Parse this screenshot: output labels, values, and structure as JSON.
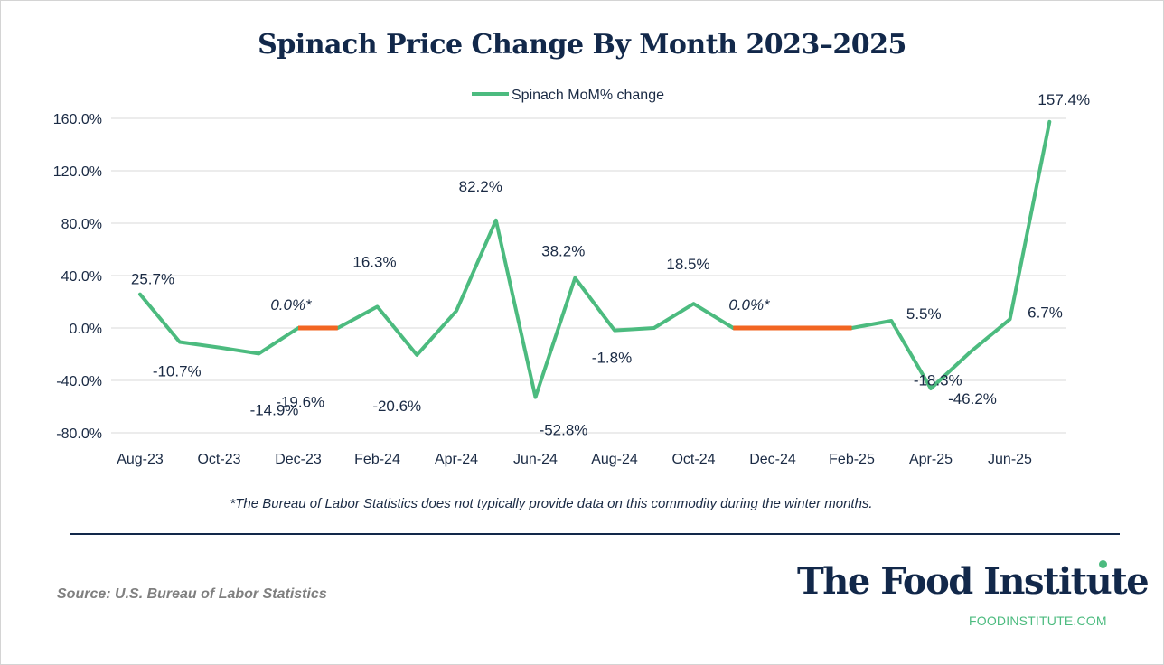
{
  "chart_data": {
    "type": "line",
    "title": "Spinach Price Change By Month 2023–2025",
    "legend": {
      "label": "Spinach MoM% change",
      "position": "top-center"
    },
    "series_color": "#4cbb7f",
    "gap_color": "#f26522",
    "ylim": [
      -80,
      160
    ],
    "y_ticks": [
      -80,
      -40,
      0,
      40,
      80,
      120,
      160
    ],
    "y_tick_labels": [
      "-80.0%",
      "-40.0%",
      "0.0%",
      "40.0%",
      "80.0%",
      "120.0%",
      "160.0%"
    ],
    "x_tick_labels": [
      "Aug-23",
      "Oct-23",
      "Dec-23",
      "Feb-24",
      "Apr-24",
      "Jun-24",
      "Aug-24",
      "Oct-24",
      "Dec-24",
      "Feb-25",
      "Apr-25",
      "Jun-25"
    ],
    "categories": [
      "Aug-23",
      "Sep-23",
      "Oct-23",
      "Nov-23",
      "Dec-23",
      "Jan-24",
      "Feb-24",
      "Mar-24",
      "Apr-24",
      "May-24",
      "Jun-24",
      "Jul-24",
      "Aug-24",
      "Sep-24",
      "Oct-24",
      "Nov-24",
      "Dec-24",
      "Jan-25",
      "Feb-25",
      "Mar-25",
      "Apr-25",
      "May-25",
      "Jun-25",
      "Jul-25"
    ],
    "values": [
      25.7,
      -10.7,
      -14.9,
      -19.6,
      0.0,
      0.0,
      16.3,
      -20.6,
      13.0,
      82.2,
      -52.8,
      38.2,
      -1.8,
      0.0,
      18.5,
      0.0,
      0.0,
      0.0,
      0.0,
      5.5,
      -46.2,
      -18.3,
      6.7,
      157.4
    ],
    "winter_gaps": [
      [
        4,
        5
      ],
      [
        15,
        18
      ]
    ],
    "data_labels": [
      {
        "index": 0,
        "text": "25.7%"
      },
      {
        "index": 1,
        "text": "-10.7%"
      },
      {
        "index": 2,
        "text": "-14.9%"
      },
      {
        "index": 3,
        "text": "-19.6%"
      },
      {
        "index": 4,
        "text": "0.0%*"
      },
      {
        "index": 6,
        "text": "16.3%"
      },
      {
        "index": 7,
        "text": "-20.6%"
      },
      {
        "index": 9,
        "text": "82.2%"
      },
      {
        "index": 10,
        "text": "-52.8%"
      },
      {
        "index": 11,
        "text": "38.2%"
      },
      {
        "index": 12,
        "text": "-1.8%"
      },
      {
        "index": 14,
        "text": "18.5%"
      },
      {
        "index": 16,
        "text": "0.0%*"
      },
      {
        "index": 19,
        "text": "5.5%"
      },
      {
        "index": 20,
        "text": "-46.2%"
      },
      {
        "index": 21,
        "text": "-18.3%"
      },
      {
        "index": 22,
        "text": "6.7%"
      },
      {
        "index": 23,
        "text": "157.4%"
      }
    ]
  },
  "footnote": "*The Bureau of Labor Statistics does not typically provide data on this commodity during the winter months.",
  "source": "Source: U.S. Bureau of Labor Statistics",
  "brand": {
    "name": "The Food Institute",
    "url": "FOODINSTITUTE.COM",
    "accent": "#4cbb7f",
    "navy": "#12284a"
  }
}
